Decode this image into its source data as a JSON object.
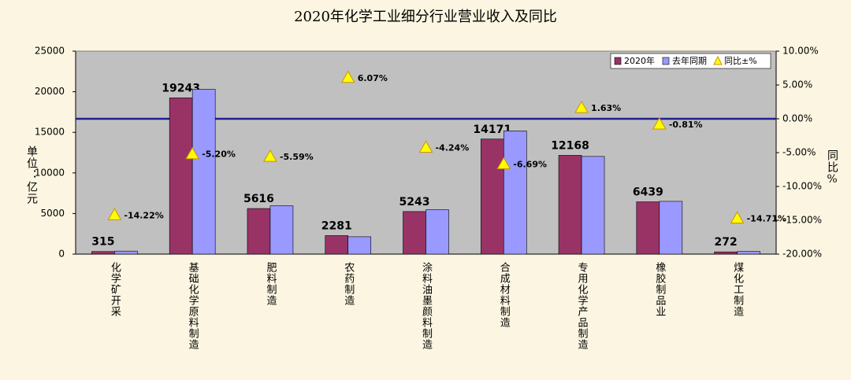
{
  "chart_data": {
    "type": "bar",
    "title": "2020年化学工业细分行业营业收入及同比",
    "y_label": "单位：亿元",
    "y2_label": "同比%",
    "categories": [
      "化学矿开采",
      "基础化学原料制造",
      "肥料制造",
      "农药制造",
      "涂料油墨颜料制造",
      "合成材料制造",
      "专用化学产品制造",
      "橡胶制品业",
      "煤化工制造"
    ],
    "series": [
      {
        "name": "2020年",
        "color": "#993366",
        "labels": true,
        "values": [
          315,
          19243,
          5616,
          2281,
          5243,
          14171,
          12168,
          6439,
          272
        ]
      },
      {
        "name": "去年同期",
        "color": "#9999ff",
        "labels": false,
        "values": [
          370,
          20300,
          5950,
          2140,
          5470,
          15180,
          12030,
          6500,
          320
        ]
      },
      {
        "name": "同比±%",
        "color": "#ffff00",
        "axis": "y2",
        "marker": "triangle",
        "labels": true,
        "values": [
          -14.22,
          -5.2,
          -5.59,
          6.07,
          -4.24,
          -6.69,
          1.63,
          -0.81,
          -14.71
        ],
        "value_labels": [
          "-14.22%",
          "-5.20%",
          "-5.59%",
          "6.07%",
          "-4.24%",
          "-6.69%",
          "1.63%",
          "-0.81%",
          "-14.71%"
        ]
      }
    ],
    "ylim": [
      0,
      25000
    ],
    "yticks": [
      0,
      5000,
      10000,
      15000,
      20000,
      25000
    ],
    "y2lim": [
      -20,
      10
    ],
    "y2ticks": [
      {
        "value": -20,
        "label": "-20.00%"
      },
      {
        "value": -15,
        "label": "-15.00%"
      },
      {
        "value": -10,
        "label": "-10.00%"
      },
      {
        "value": -5,
        "label": "-5.00%"
      },
      {
        "value": 0,
        "label": "0.00%"
      },
      {
        "value": 5,
        "label": "5.00%"
      },
      {
        "value": 10,
        "label": "10.00%"
      }
    ],
    "grid": false,
    "legend": "top-right"
  }
}
